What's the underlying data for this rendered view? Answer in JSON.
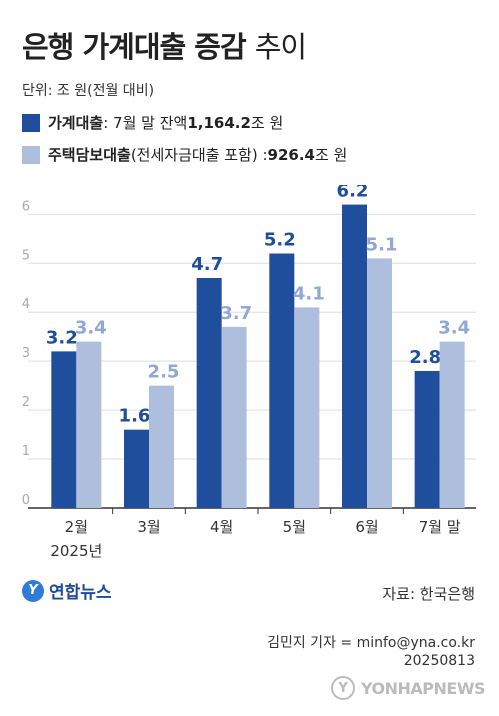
{
  "header": {
    "title_bold": "은행 가계대출 증감",
    "title_light": "추이",
    "unit": "단위: 조 원(전월 대비)"
  },
  "legend": [
    {
      "name": "가계대출",
      "rest_prefix": ": 7월 말 잔액 ",
      "value": "1,164.2",
      "suffix": "조 원",
      "color": "#1f4e9c"
    },
    {
      "name": "주택담보대출",
      "rest_prefix": "(전세자금대출 포함) : ",
      "value": "926.4",
      "suffix": "조 원",
      "color": "#aebfdd"
    }
  ],
  "chart_data": {
    "type": "bar",
    "categories": [
      "2월",
      "3월",
      "4월",
      "5월",
      "6월",
      "7월 말"
    ],
    "year_label": "2025년",
    "series": [
      {
        "name": "가계대출",
        "values": [
          3.2,
          1.6,
          4.7,
          5.2,
          6.2,
          2.8
        ],
        "color": "#1f4e9c",
        "label_color": "#1f4e9c"
      },
      {
        "name": "주택담보대출",
        "values": [
          3.4,
          2.5,
          3.7,
          4.1,
          5.1,
          3.4
        ],
        "color": "#aebfdd",
        "label_color": "#8fa8d4"
      }
    ],
    "y_ticks": [
      0,
      1,
      2,
      3,
      4,
      5,
      6
    ],
    "ylim": [
      0,
      6.6
    ],
    "grid": true
  },
  "footer": {
    "logo_text": "연합뉴스",
    "source": "자료: 한국은행",
    "reporter": "김민지 기자 = minfo@yna.co.kr",
    "date": "20250813",
    "watermark": "YONHAPNEWS"
  }
}
